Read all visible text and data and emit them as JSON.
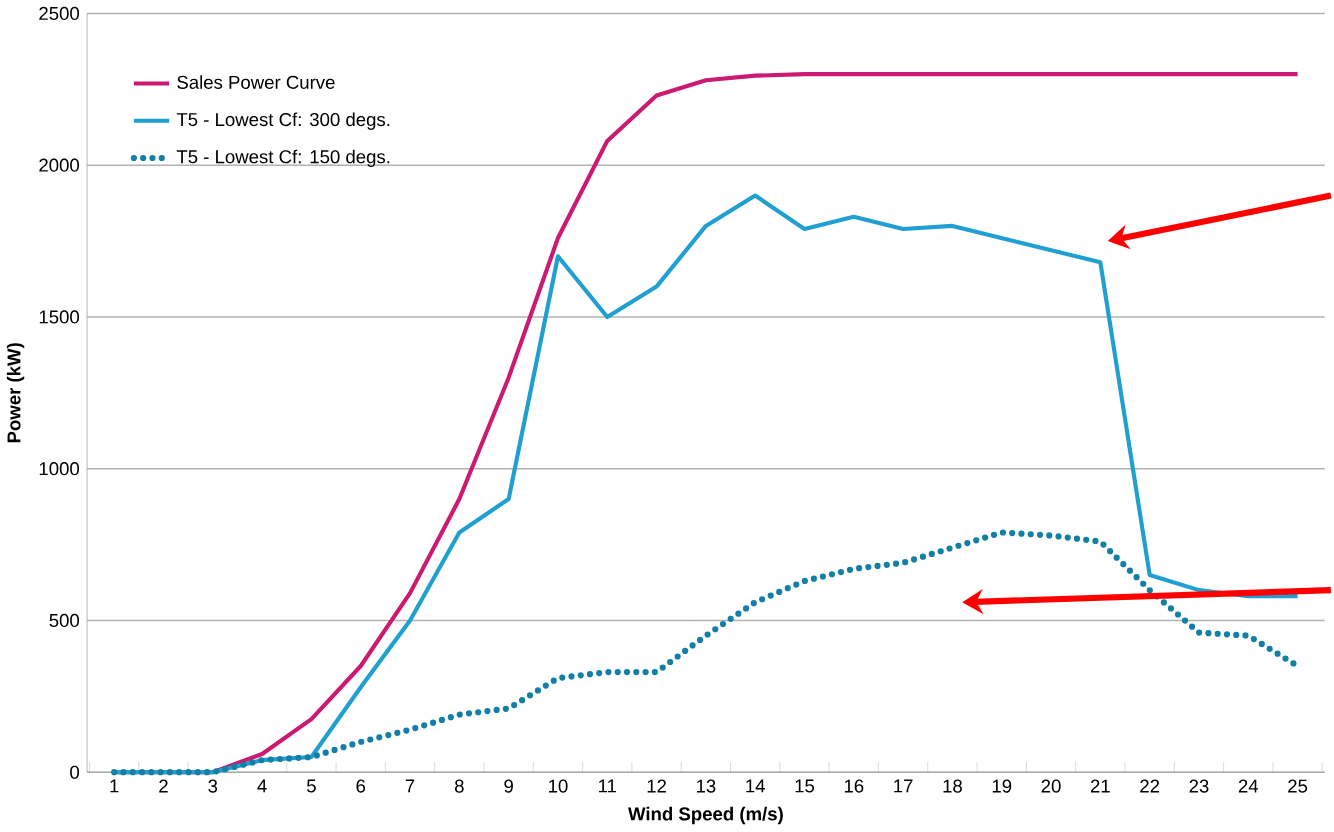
{
  "chart_data": {
    "type": "line",
    "xlabel": "Wind Speed (m/s)",
    "ylabel": "Power (kW)",
    "categories": [
      "1",
      "2",
      "3",
      "4",
      "5",
      "6",
      "7",
      "8",
      "9",
      "10",
      "11",
      "12",
      "13",
      "14",
      "15",
      "16",
      "17",
      "18",
      "19",
      "20",
      "21",
      "22",
      "23",
      "24",
      "25"
    ],
    "series": [
      {
        "name": "Sales Power Curve",
        "color": "#cc1a73",
        "line_style": "solid",
        "values": [
          0,
          0,
          0,
          60,
          175,
          350,
          590,
          900,
          1300,
          1760,
          2080,
          2230,
          2280,
          2295,
          2300,
          2300,
          2300,
          2300,
          2300,
          2300,
          2300,
          2300,
          2300,
          2300,
          2300
        ]
      },
      {
        "name": "T5 - Lowest Cf: 300 degs.",
        "color": "#1fa0d0",
        "line_style": "solid",
        "values": [
          0,
          0,
          0,
          40,
          50,
          280,
          500,
          790,
          900,
          1700,
          1500,
          1600,
          1800,
          1900,
          1790,
          1830,
          1790,
          1800,
          1760,
          1720,
          1680,
          650,
          600,
          580,
          580
        ]
      },
      {
        "name": "T5 - Lowest Cf: 150 degs.",
        "color": "#127fa6",
        "line_style": "dotted",
        "values": [
          0,
          0,
          0,
          40,
          50,
          100,
          140,
          190,
          210,
          310,
          330,
          330,
          450,
          560,
          630,
          670,
          690,
          740,
          790,
          780,
          760,
          600,
          460,
          450,
          350
        ]
      }
    ],
    "ylim": [
      0,
      2500
    ],
    "yticks": [
      0,
      500,
      1000,
      1500,
      2000,
      2500
    ],
    "grid": "y",
    "legend": "top left",
    "marker": "none"
  }
}
